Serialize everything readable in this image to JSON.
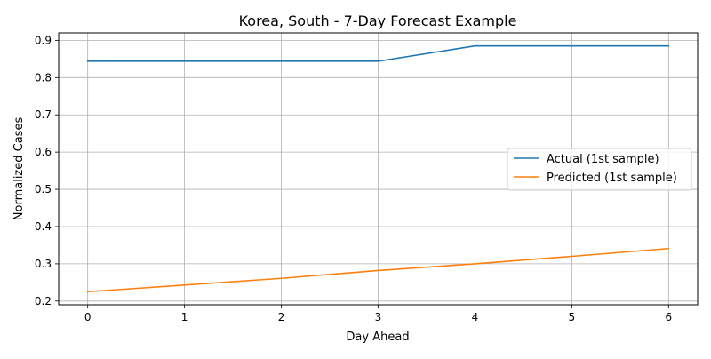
{
  "chart_data": {
    "type": "line",
    "title": "Korea, South - 7-Day Forecast Example",
    "xlabel": "Day Ahead",
    "ylabel": "Normalized Cases",
    "x": [
      0,
      1,
      2,
      3,
      4,
      5,
      6
    ],
    "xticks": [
      "0",
      "1",
      "2",
      "3",
      "4",
      "5",
      "6"
    ],
    "yticks": [
      "0.2",
      "0.3",
      "0.4",
      "0.5",
      "0.6",
      "0.7",
      "0.8",
      "0.9"
    ],
    "ytick_values": [
      0.2,
      0.3,
      0.4,
      0.5,
      0.6,
      0.7,
      0.8,
      0.9
    ],
    "xlim": [
      -0.3,
      6.3
    ],
    "ylim": [
      0.19,
      0.92
    ],
    "grid": true,
    "legend_position": "center-right",
    "series": [
      {
        "name": "Actual (1st sample)",
        "color": "#1f77b4",
        "values": [
          0.844,
          0.844,
          0.844,
          0.844,
          0.885,
          0.885,
          0.885
        ]
      },
      {
        "name": "Predicted (1st sample)",
        "color": "#ff7f0e",
        "values": [
          0.225,
          0.243,
          0.261,
          0.282,
          0.3,
          0.32,
          0.341
        ]
      }
    ]
  }
}
